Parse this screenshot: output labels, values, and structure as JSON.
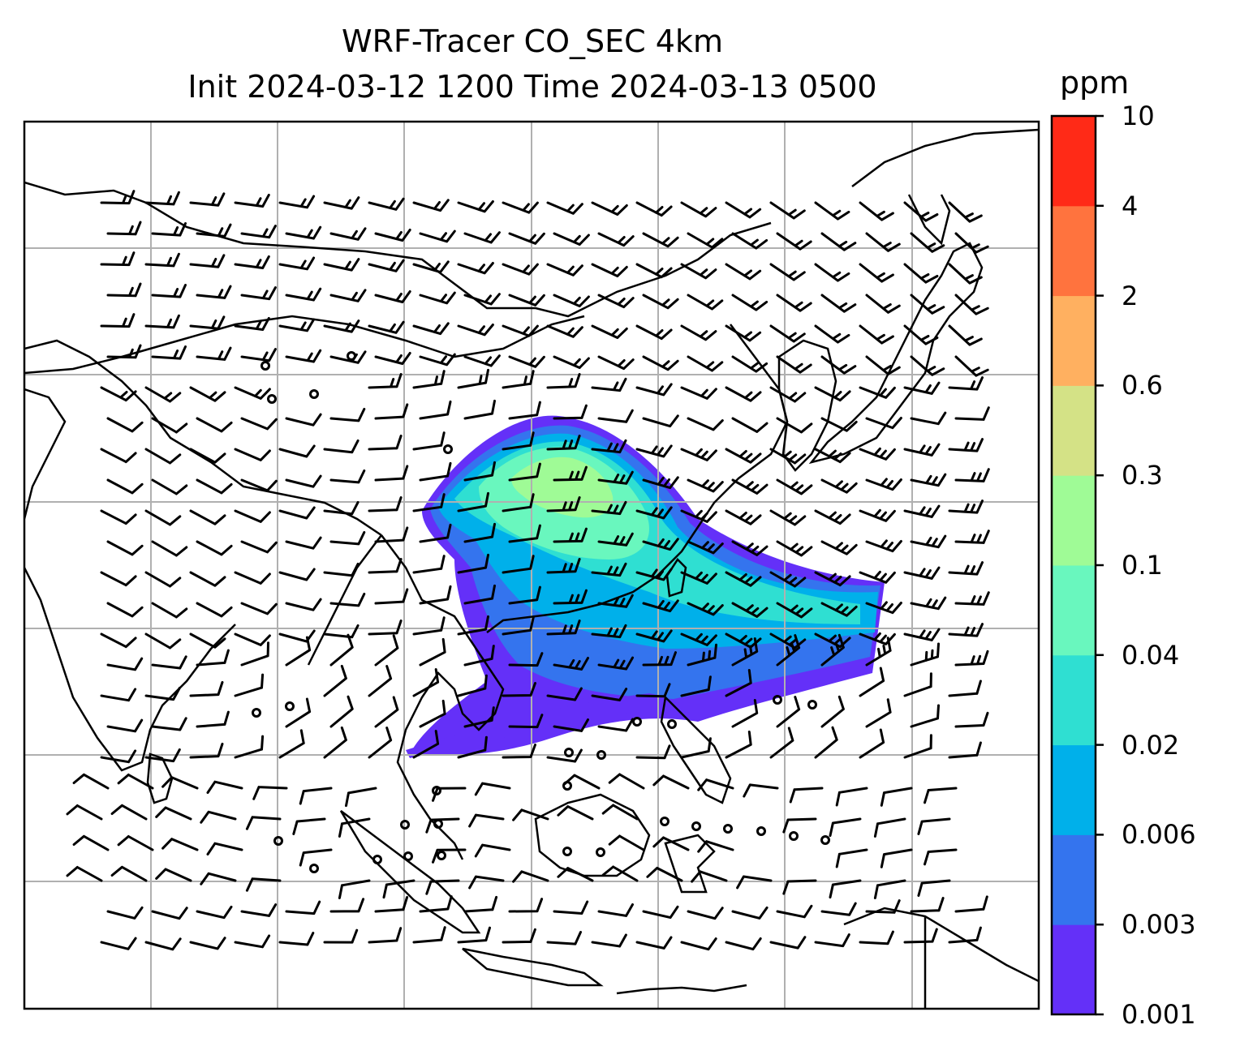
{
  "title": {
    "line1": "WRF-Tracer CO_SEC 4km",
    "line2": "Init 2024-03-12 1200 Time 2024-03-13 0500"
  },
  "colorbar": {
    "unit": "ppm",
    "levels": [
      "0.001",
      "0.003",
      "0.006",
      "0.02",
      "0.04",
      "0.1",
      "0.3",
      "0.6",
      "2",
      "4",
      "10"
    ],
    "colors": [
      "#6430f8",
      "#3474ee",
      "#00b0ea",
      "#2fdfd2",
      "#69f7be",
      "#9ffb96",
      "#d4e286",
      "#ffb060",
      "#ff733e",
      "#ff2a17"
    ]
  },
  "map": {
    "projection": "regional map of South/East Asia with lat-lon gridlines",
    "calm_marker": "circle",
    "wind_symbol": "wind barbs"
  }
}
